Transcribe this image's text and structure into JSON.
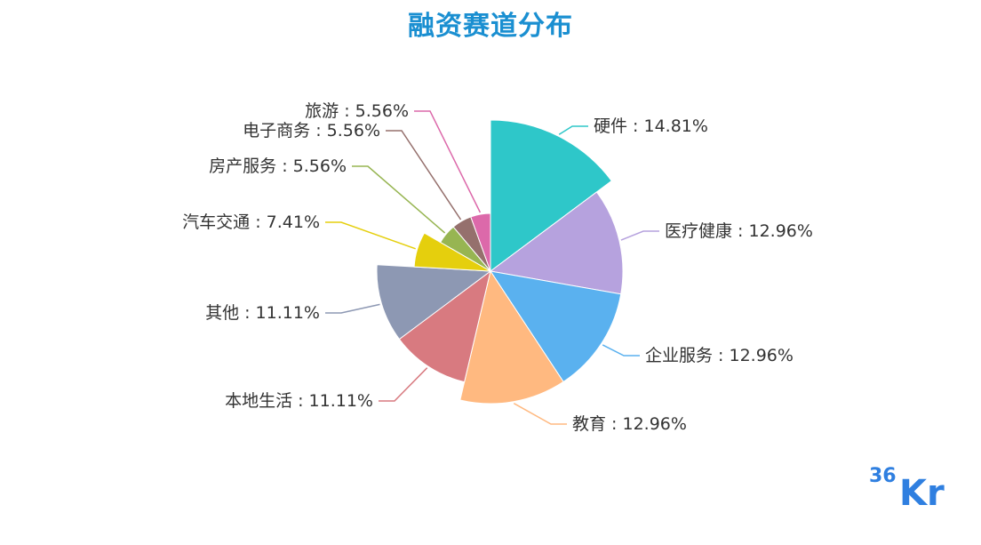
{
  "chart_data": {
    "type": "pie",
    "variant": "rose",
    "title": "融资赛道分布",
    "slices": [
      {
        "name": "硬件",
        "value": 14.81,
        "label": "硬件 : 14.81%",
        "color": "#2ec7c9"
      },
      {
        "name": "医疗健康",
        "value": 12.96,
        "label": "医疗健康 : 12.96%",
        "color": "#b6a2de"
      },
      {
        "name": "企业服务",
        "value": 12.96,
        "label": "企业服务 : 12.96%",
        "color": "#5ab1ef"
      },
      {
        "name": "教育",
        "value": 12.96,
        "label": "教育 : 12.96%",
        "color": "#ffb980"
      },
      {
        "name": "本地生活",
        "value": 11.11,
        "label": "本地生活 : 11.11%",
        "color": "#d87a80"
      },
      {
        "name": "其他",
        "value": 11.11,
        "label": "其他 : 11.11%",
        "color": "#8d98b3"
      },
      {
        "name": "汽车交通",
        "value": 7.41,
        "label": "汽车交通 : 7.41%",
        "color": "#e5cf0d"
      },
      {
        "name": "房产服务",
        "value": 5.56,
        "label": "房产服务 : 5.56%",
        "color": "#97b552"
      },
      {
        "name": "电子商务",
        "value": 5.56,
        "label": "电子商务 : 5.56%",
        "color": "#95706d"
      },
      {
        "name": "旅游",
        "value": 5.56,
        "label": "旅游 : 5.56%",
        "color": "#dc69aa"
      }
    ]
  },
  "logo": {
    "text_top": "36",
    "text_bottom": "Kr",
    "color": "#2f7fe0"
  }
}
